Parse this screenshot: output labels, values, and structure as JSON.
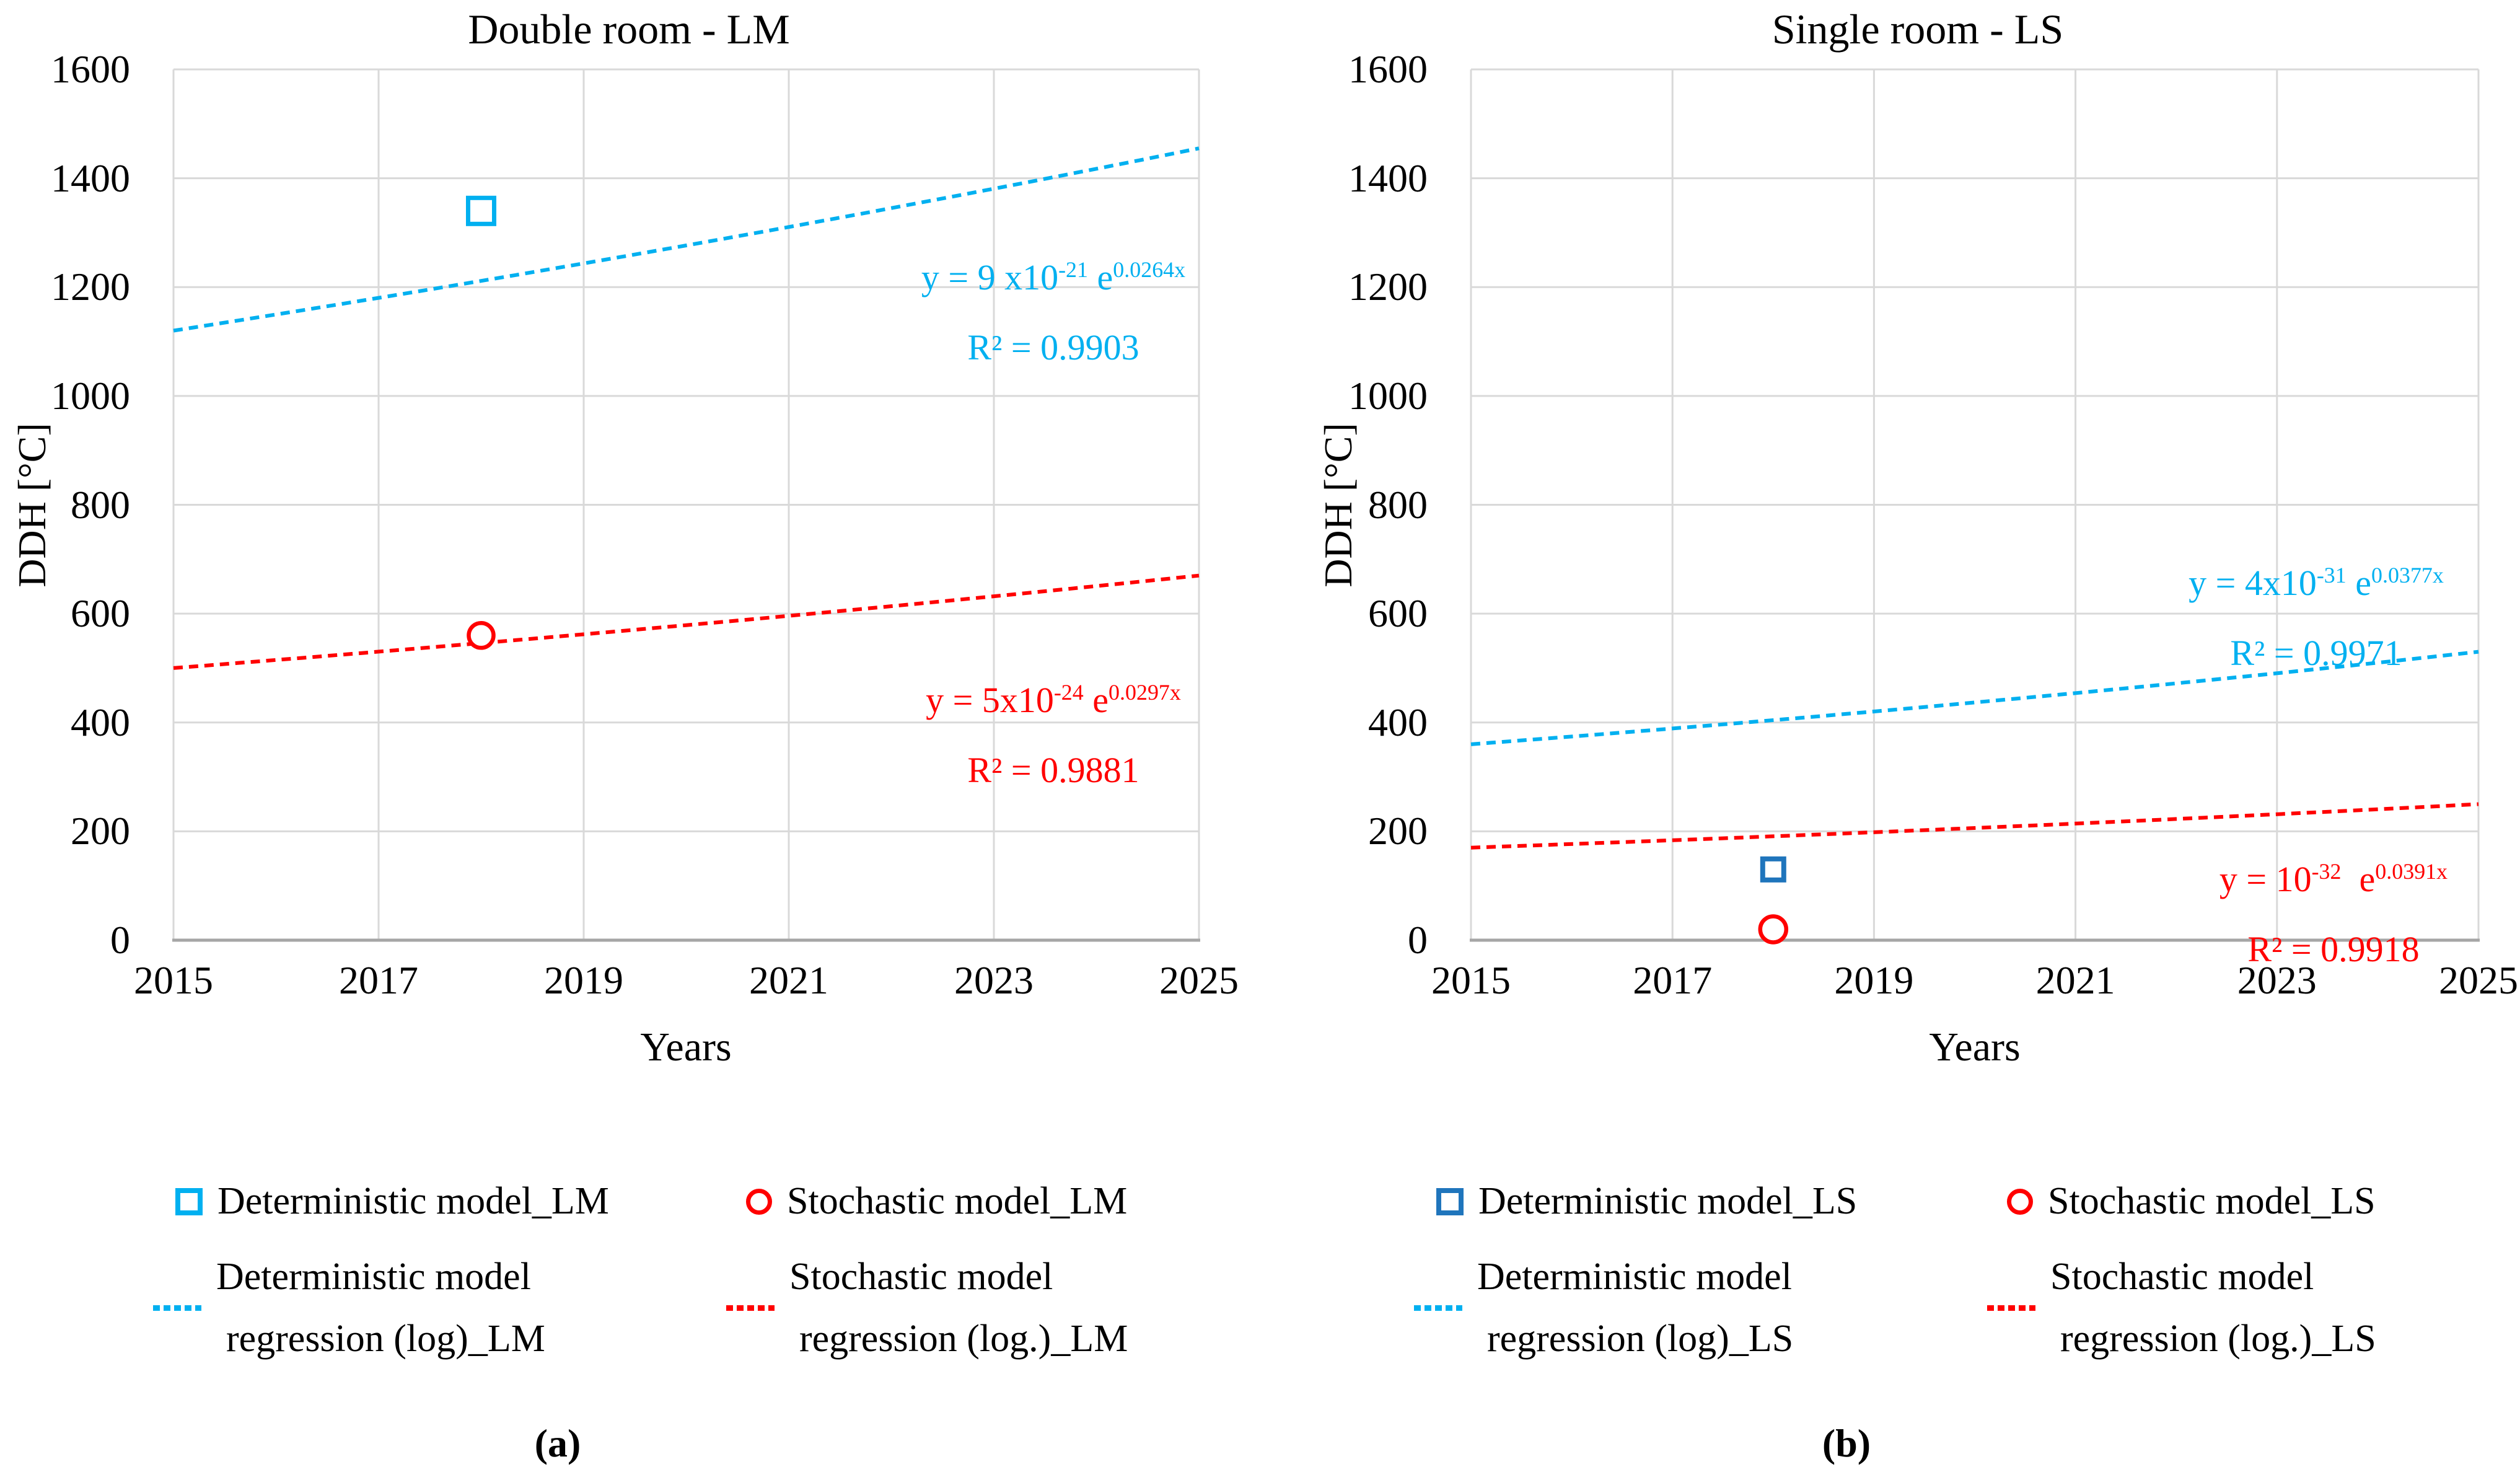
{
  "colors": {
    "cyan": "#00B0F0",
    "red": "#FF0000",
    "dark_blue": "#1F75BC",
    "grid": "#D9D9D9",
    "axis": "#A6A6A6"
  },
  "chart_data": [
    {
      "type": "scatter",
      "title": "Double room - LM",
      "xlabel": "Years",
      "ylabel": "DDH [°C]",
      "xlim": [
        2015,
        2025
      ],
      "ylim": [
        0,
        1600
      ],
      "xticks": [
        2015,
        2017,
        2019,
        2021,
        2023,
        2025
      ],
      "yticks": [
        0,
        200,
        400,
        600,
        800,
        1000,
        1200,
        1400,
        1600
      ],
      "grid": true,
      "legend_position": "bottom",
      "points": [
        {
          "name": "Deterministic model_LM",
          "marker": "square",
          "color": "#00B0F0",
          "x": 2018,
          "y": 1340
        },
        {
          "name": "Stochastic model_LM",
          "marker": "circle",
          "color": "#FF0000",
          "x": 2018,
          "y": 560
        }
      ],
      "lines": [
        {
          "name": "Deterministic model regression (log)_LM",
          "color": "#00B0F0",
          "style": "dashed",
          "x": [
            2015,
            2025
          ],
          "y": [
            1120,
            1455
          ]
        },
        {
          "name": "Stochastic model regression (log.)_LM",
          "color": "#FF0000",
          "style": "dashed",
          "x": [
            2015,
            2025
          ],
          "y": [
            500,
            670
          ]
        }
      ],
      "annotations": [
        {
          "color": "#00B0F0",
          "equation": [
            {
              "t": "y = 9 x10"
            },
            {
              "t": "-21",
              "sup": true
            },
            {
              "t": " e"
            },
            {
              "t": "0.0264x",
              "sup": true
            }
          ],
          "r2": "R² = 0.9903"
        },
        {
          "color": "#FF0000",
          "equation": [
            {
              "t": "y = 5x10"
            },
            {
              "t": "-24",
              "sup": true
            },
            {
              "t": " e"
            },
            {
              "t": "0.0297x",
              "sup": true
            }
          ],
          "r2": "R² = 0.9881"
        }
      ]
    },
    {
      "type": "scatter",
      "title": "Single room - LS",
      "xlabel": "Years",
      "ylabel": "DDH [°C]",
      "xlim": [
        2015,
        2025
      ],
      "ylim": [
        0,
        1600
      ],
      "xticks": [
        2015,
        2017,
        2019,
        2021,
        2023,
        2025
      ],
      "yticks": [
        0,
        200,
        400,
        600,
        800,
        1000,
        1200,
        1400,
        1600
      ],
      "grid": true,
      "legend_position": "bottom",
      "points": [
        {
          "name": "Deterministic model_LS",
          "marker": "square",
          "color": "#1F75BC",
          "x": 2018,
          "y": 130
        },
        {
          "name": "Stochastic model_LS",
          "marker": "circle",
          "color": "#FF0000",
          "x": 2018,
          "y": 20
        }
      ],
      "lines": [
        {
          "name": "Deterministic model regression (log)_LS",
          "color": "#00B0F0",
          "style": "dashed",
          "x": [
            2015,
            2025
          ],
          "y": [
            360,
            530
          ]
        },
        {
          "name": "Stochastic model regression (log.)_LS",
          "color": "#FF0000",
          "style": "dashed",
          "x": [
            2015,
            2025
          ],
          "y": [
            170,
            250
          ]
        }
      ],
      "annotations": [
        {
          "color": "#00B0F0",
          "equation": [
            {
              "t": "y = 4x10"
            },
            {
              "t": "-31",
              "sup": true
            },
            {
              "t": " e"
            },
            {
              "t": "0.0377x",
              "sup": true
            }
          ],
          "r2": "R² = 0.9971"
        },
        {
          "color": "#FF0000",
          "equation": [
            {
              "t": "y = 10"
            },
            {
              "t": "-32",
              "sup": true
            },
            {
              "t": " e"
            },
            {
              "t": "0.0391x",
              "sup": true
            }
          ],
          "r2": "R² = 0.9918"
        }
      ]
    }
  ],
  "legend": {
    "panels": [
      {
        "row1": [
          {
            "marker": "square",
            "color": "#00B0F0",
            "label": "Deterministic model_LM"
          },
          {
            "marker": "circle",
            "color": "#FF0000",
            "label": "Stochastic model_LM"
          }
        ],
        "row2": [
          {
            "marker": "dash",
            "color": "#00B0F0",
            "line1": "Deterministic model",
            "line2": "regression (log)_LM"
          },
          {
            "marker": "dash",
            "color": "#FF0000",
            "line1": "Stochastic model",
            "line2": "regression (log.)_LM"
          }
        ]
      },
      {
        "row1": [
          {
            "marker": "square",
            "color": "#1F75BC",
            "label": "Deterministic model_LS"
          },
          {
            "marker": "circle",
            "color": "#FF0000",
            "label": "Stochastic model_LS"
          }
        ],
        "row2": [
          {
            "marker": "dash",
            "color": "#00B0F0",
            "line1": "Deterministic model",
            "line2": "regression (log)_LS"
          },
          {
            "marker": "dash",
            "color": "#FF0000",
            "line1": "Stochastic model",
            "line2": "regression (log.)_LS"
          }
        ]
      }
    ]
  },
  "captions": {
    "a": "(a)",
    "b": "(b)"
  }
}
